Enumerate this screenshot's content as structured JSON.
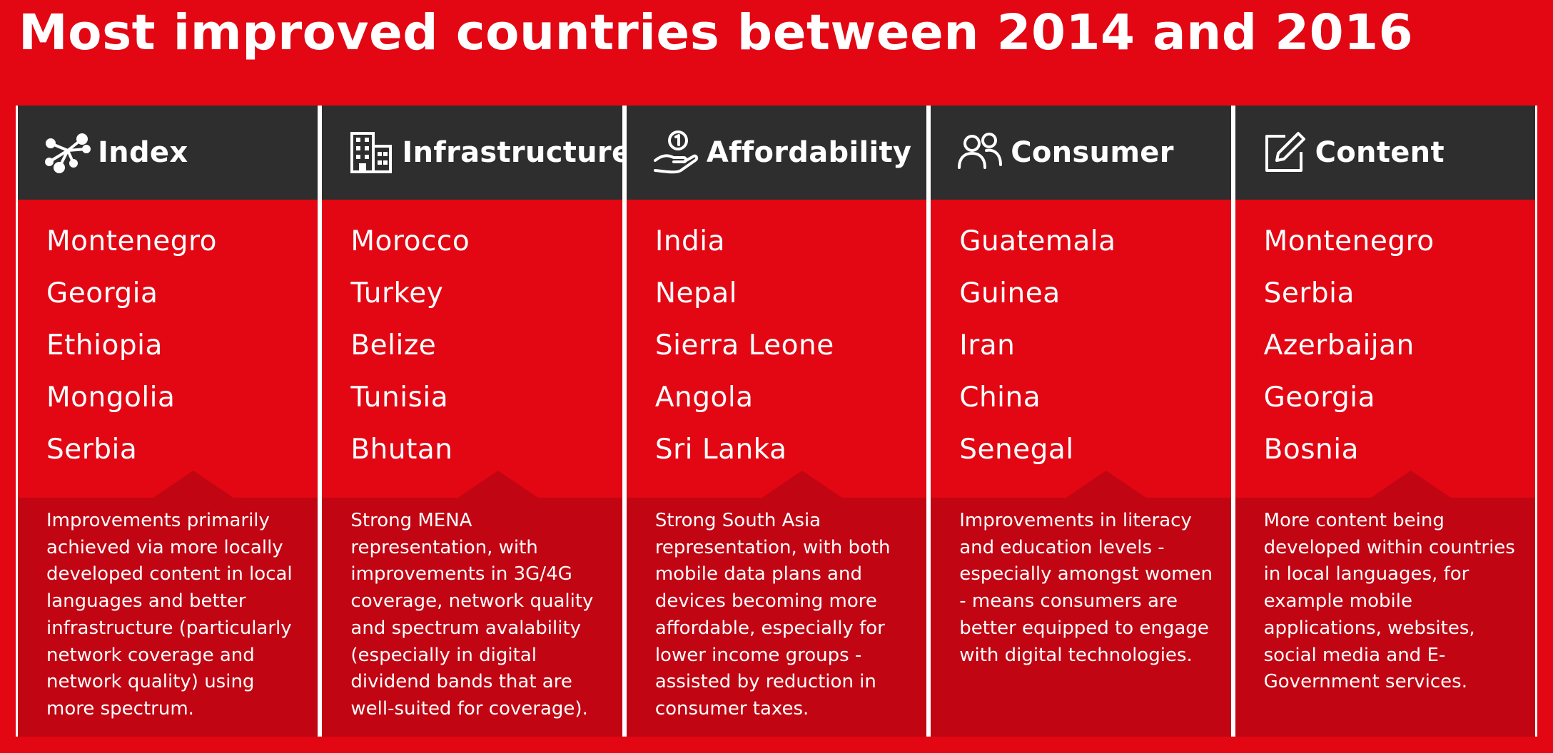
{
  "title": "Most improved countries between 2014 and 2016",
  "columns": [
    {
      "label": "Index",
      "icon": "network-icon",
      "countries": [
        "Montenegro",
        "Georgia",
        "Ethiopia",
        "Mongolia",
        "Serbia"
      ],
      "description": "Improvements primarily achieved via more locally developed content in local languages and better infrastructure (particularly network coverage and network quality) using more spectrum."
    },
    {
      "label": "Infrastructure",
      "icon": "building-icon",
      "countries": [
        "Morocco",
        "Turkey",
        "Belize",
        "Tunisia",
        "Bhutan"
      ],
      "description": "Strong MENA representation, with improvements in 3G/4G coverage, network quality and spectrum avalability (especially in digital dividend bands that are well-suited for coverage)."
    },
    {
      "label": "Affordability",
      "icon": "coin-hand-icon",
      "countries": [
        "India",
        "Nepal",
        "Sierra Leone",
        "Angola",
        "Sri Lanka"
      ],
      "description": "Strong South Asia representation, with both mobile data plans and devices becoming more affordable, especially for lower income groups - assisted by reduction in consumer taxes."
    },
    {
      "label": "Consumer",
      "icon": "users-icon",
      "countries": [
        "Guatemala",
        "Guinea",
        "Iran",
        "China",
        "Senegal"
      ],
      "description": "Improvements in literacy and education levels - especially amongst women - means consumers are better equipped to engage with digital technologies."
    },
    {
      "label": "Content",
      "icon": "edit-icon",
      "countries": [
        "Montenegro",
        "Serbia",
        "Azerbaijan",
        "Georgia",
        "Bosnia"
      ],
      "description": "More content being developed within countries in local languages, for example mobile applications, websites, social media and E-Government services."
    }
  ],
  "colors": {
    "background": "#e30613",
    "header": "#2e2e2e",
    "description_panel": "#c10513",
    "text": "#ffffff"
  }
}
